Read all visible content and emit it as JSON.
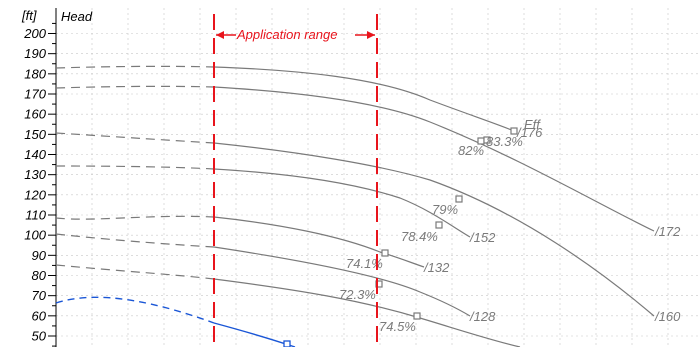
{
  "chart_data": {
    "type": "line",
    "ylabel": "Head",
    "y_unit": "[ft]",
    "ylim": [
      43,
      210
    ],
    "y_ticks": [
      50,
      60,
      70,
      80,
      90,
      100,
      110,
      120,
      130,
      140,
      150,
      160,
      170,
      180,
      190,
      200
    ],
    "grid": true,
    "application_range": {
      "label": "Application range"
    },
    "curve_labels": [
      "/176",
      "/172",
      "/160",
      "/152",
      "/132",
      "/128"
    ],
    "efficiency_points": [
      "82%",
      "83.3%",
      "79%",
      "78.4%",
      "74.1%",
      "72.3%",
      "74.5%"
    ],
    "efficiency_label": "Eff",
    "colors": {
      "curve": "#7a7a7a",
      "range": "#e8141c",
      "operating": "#1a56d6",
      "grid": "#c8c8c8"
    }
  }
}
